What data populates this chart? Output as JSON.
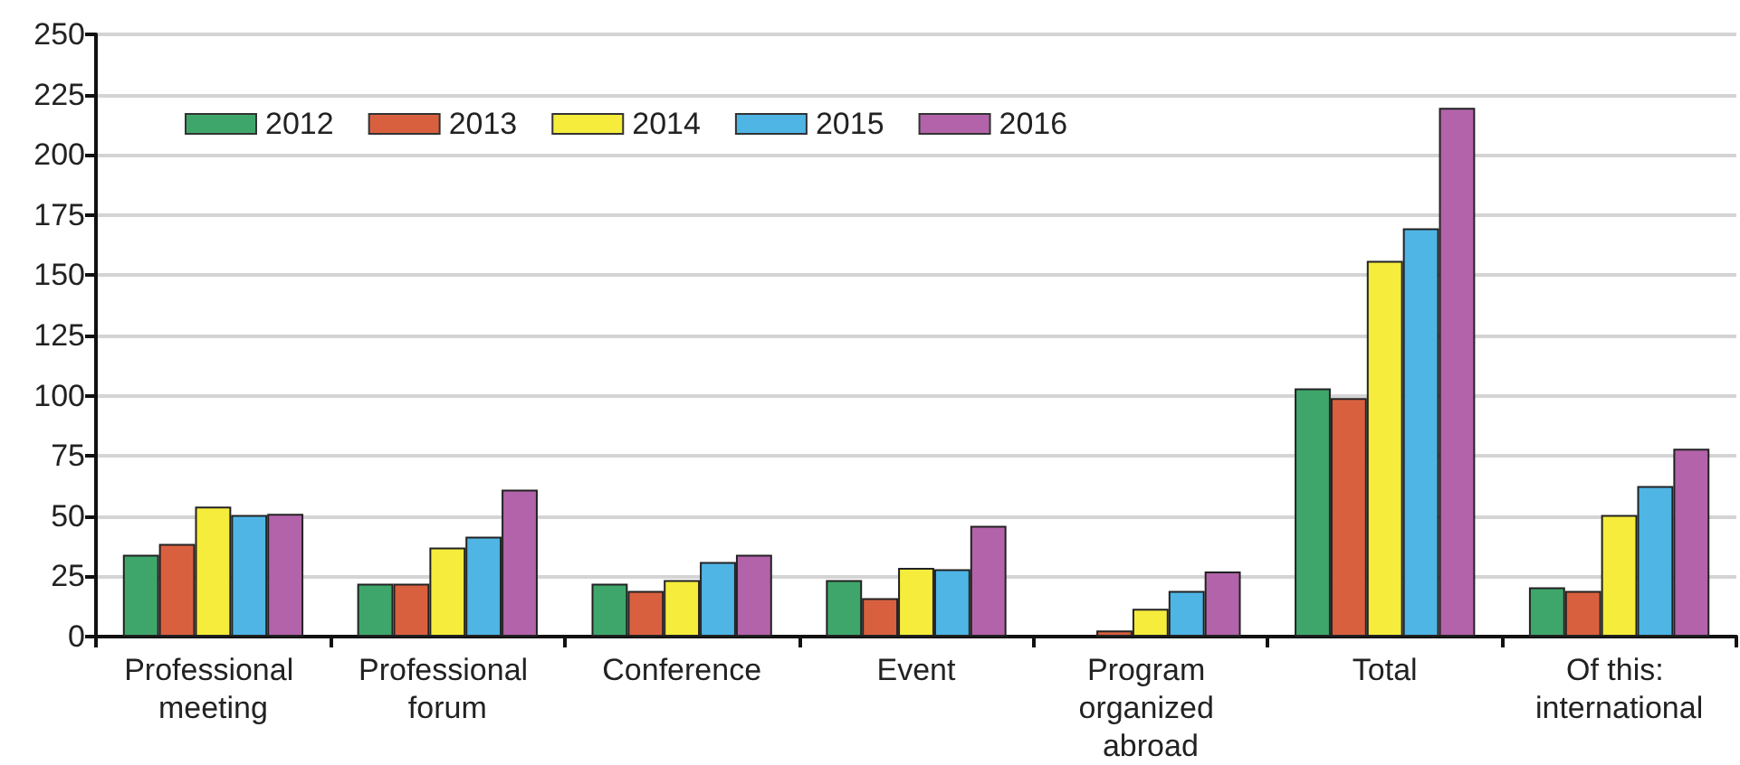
{
  "chart_data": {
    "type": "bar",
    "categories": [
      "Professional meeting",
      "Professional forum",
      "Conference",
      "Event",
      "Program organized abroad",
      "Total",
      "Of this: international"
    ],
    "series": [
      {
        "name": "2012",
        "color": "#3fa66b",
        "values": [
          34,
          22,
          22,
          23.5,
          null,
          103,
          20.5
        ]
      },
      {
        "name": "2013",
        "color": "#d9603f",
        "values": [
          38.5,
          22,
          19,
          16,
          2.5,
          99,
          19
        ]
      },
      {
        "name": "2014",
        "color": "#f5ec3c",
        "values": [
          54,
          37,
          23.5,
          28.5,
          11.5,
          156,
          50.5
        ]
      },
      {
        "name": "2015",
        "color": "#4fb5e5",
        "values": [
          50.5,
          41.5,
          31,
          28,
          19,
          169.5,
          62.5
        ]
      },
      {
        "name": "2016",
        "color": "#b363aa",
        "values": [
          51,
          61,
          34,
          46,
          27,
          219.5,
          78
        ]
      }
    ],
    "ylim": [
      0,
      250
    ],
    "yticks": [
      0,
      25,
      50,
      75,
      100,
      125,
      150,
      175,
      200,
      225,
      250
    ],
    "grid": "y",
    "legend": "top left"
  }
}
